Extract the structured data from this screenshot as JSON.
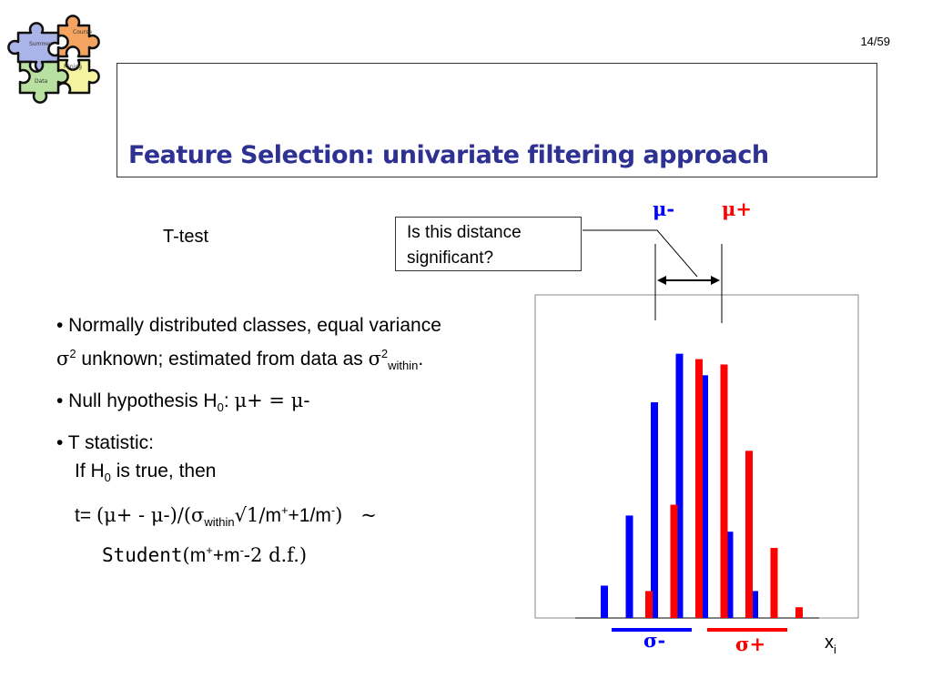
{
  "logo": {
    "pieces": [
      "Course",
      "Summer",
      "Mining",
      "Data"
    ],
    "colors": [
      "#f4a460",
      "#aab4e8",
      "#f4f4a0",
      "#b8e0a0"
    ]
  },
  "header": {
    "page": "14/59"
  },
  "slide": {
    "title": "Feature Selection: univariate filtering approach",
    "ttest_label": "T-test",
    "question_line1": "Is this distance",
    "question_line2": "significant?",
    "mu_minus": "μ-",
    "mu_plus": "μ+",
    "sigma_minus": "σ-",
    "sigma_plus": "σ+",
    "x_axis_label": "x",
    "x_axis_sub": "i"
  },
  "bullets": {
    "b1_part1": "• Normally distributed classes, equal variance ",
    "b1_sigma": "σ",
    "b1_sup": "2",
    "b1_part2": " unknown; estimated from data as ",
    "b1_sigma2": "σ",
    "b1_sup2": "2",
    "b1_sub": "within",
    "b1_end": ".",
    "b2_part1": "• Null hypothesis H",
    "b2_sub": "0",
    "b2_part2": ": ",
    "b2_formula": "μ+ = μ-",
    "b3_line1": "• T statistic:",
    "b3_line2a": "If H",
    "b3_line2_sub": "0",
    "b3_line2b": " is true, then",
    "f_t": "t= ",
    "f_open": "(μ+ - μ-)/(σ",
    "f_within": "within",
    "f_sqrt": "√1/",
    "f_m": "m",
    "f_sup1": "+",
    "f_plus1": "+1/m",
    "f_sup2": "-",
    "f_close": ")",
    "f_tilde": "~",
    "f_student": "Student",
    "f_open2": "(",
    "f_m2": "m",
    "f_sup3": "+",
    "f_plusm": "+m",
    "f_sup4": "-",
    "f_minus2": "-2",
    "f_df": " d.f.)"
  },
  "chart_data": {
    "type": "bar",
    "series": [
      {
        "name": "",
        "color": "#0000ff",
        "values": [
          6,
          19,
          40,
          49,
          45,
          16,
          5
        ]
      },
      {
        "name": "",
        "color": "#ff0000",
        "values": [
          5,
          21,
          48,
          47,
          31,
          13,
          2
        ]
      }
    ],
    "ylim": [
      0,
      54
    ],
    "grid": false
  }
}
